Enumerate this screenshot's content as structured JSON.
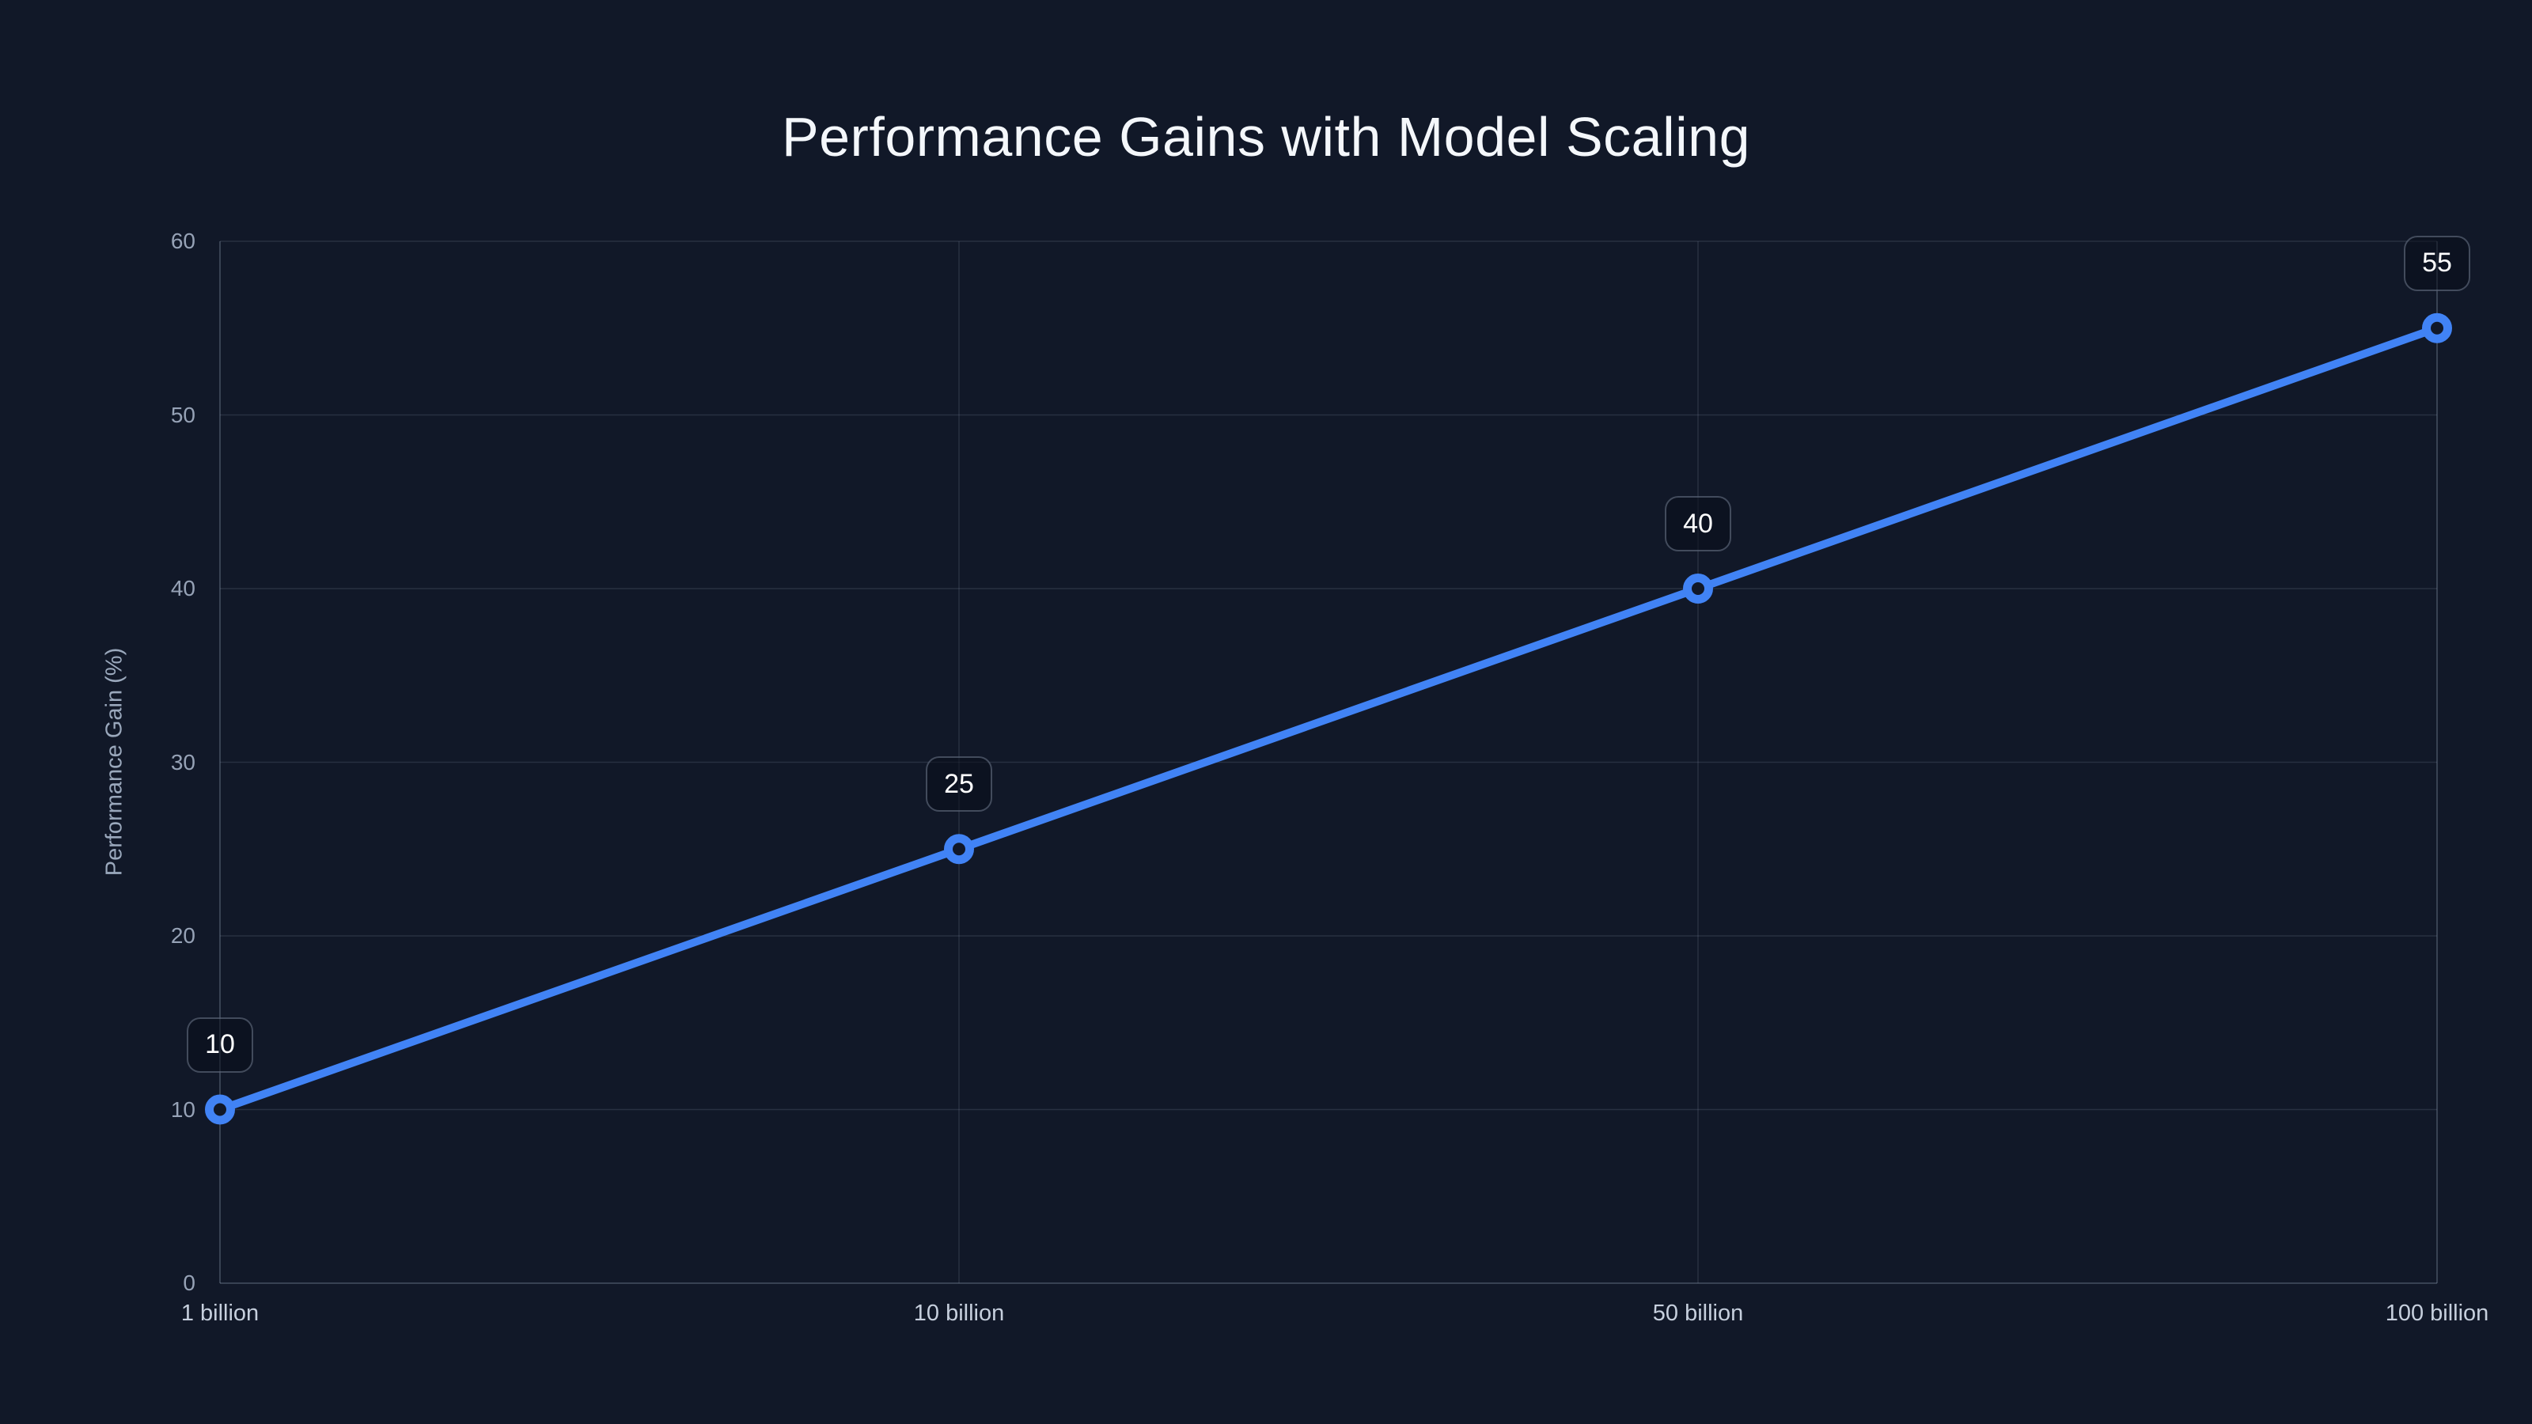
{
  "chart": {
    "title": "Performance Gains with Model Scaling"
  },
  "chart_data": {
    "type": "line",
    "title": "Performance Gains with Model Scaling",
    "categories": [
      "1 billion",
      "10 billion",
      "50 billion",
      "100 billion"
    ],
    "series": [
      {
        "name": "Performance Gain (%)",
        "values": [
          10,
          25,
          40,
          55
        ]
      }
    ],
    "point_labels": [
      "10",
      "25",
      "40",
      "55"
    ],
    "xlabel": "",
    "ylabel": "Performance Gain (%)",
    "ylim": [
      0,
      60
    ],
    "yticks": [
      0,
      10,
      20,
      30,
      40,
      50,
      60
    ],
    "grid": true,
    "legend_position": "none",
    "marker_style": "open-circle"
  },
  "colors": {
    "background": "#111828",
    "line": "#4183f5",
    "marker_fill": "#111828",
    "grid": "rgba(148,163,184,0.18)",
    "axis_border": "rgba(148,163,184,0.28)",
    "title_text": "#f4f7fb",
    "x_tick_text": "#c6cfdd",
    "y_tick_text": "#96a2b6",
    "axis_title_text": "#9aa8bc",
    "label_box_bg": "rgba(9,14,26,0.55)",
    "label_box_border": "rgba(148,163,184,0.40)",
    "label_text": "#ffffff"
  }
}
